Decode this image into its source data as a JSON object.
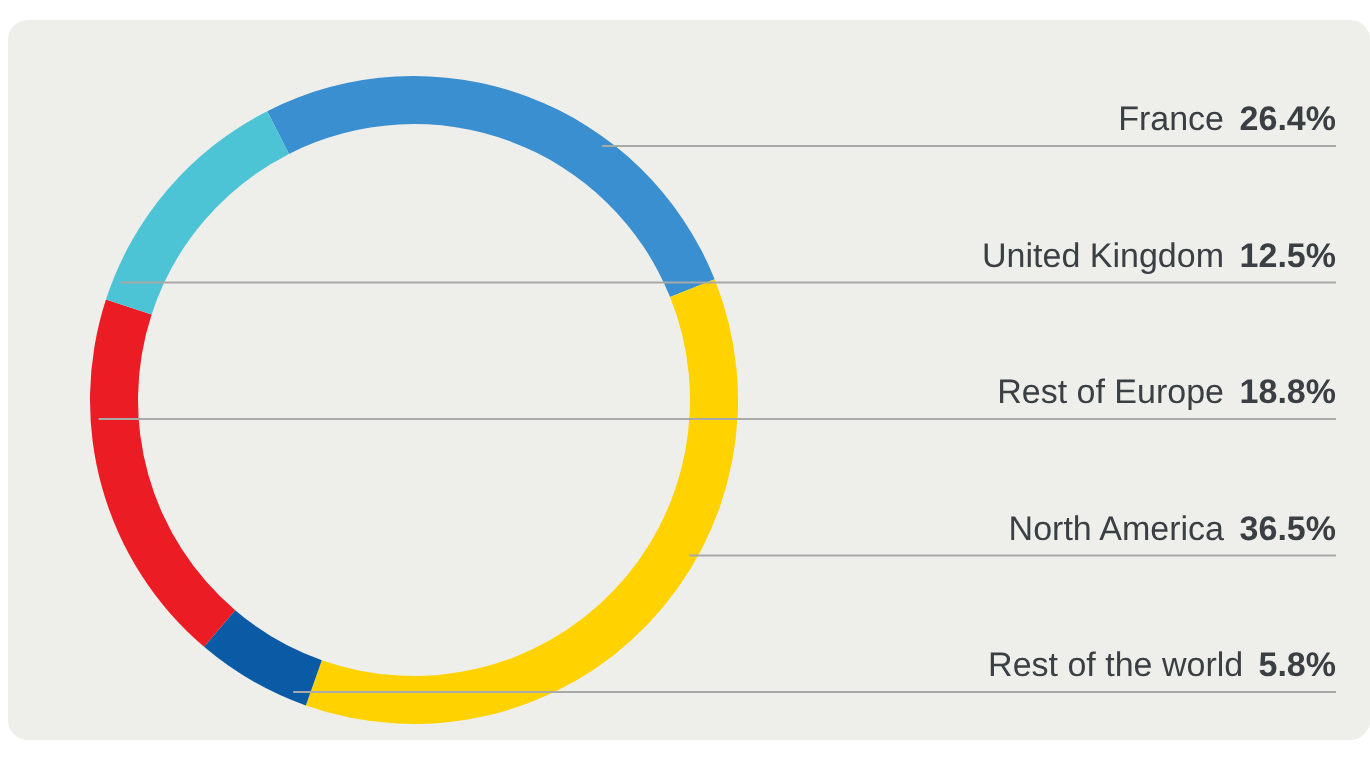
{
  "chart_data": {
    "type": "donut",
    "categories": [
      "France",
      "North America",
      "Rest of the world",
      "Rest of Europe",
      "United Kingdom"
    ],
    "values": [
      26.4,
      36.5,
      5.8,
      18.8,
      12.5
    ],
    "colors": [
      "#3a8fd0",
      "#ffd200",
      "#0b5aa6",
      "#ec1c24",
      "#4dc3d6"
    ],
    "value_labels": [
      "26.4%",
      "36.5%",
      "5.8%",
      "18.8%",
      "12.5%"
    ]
  }
}
